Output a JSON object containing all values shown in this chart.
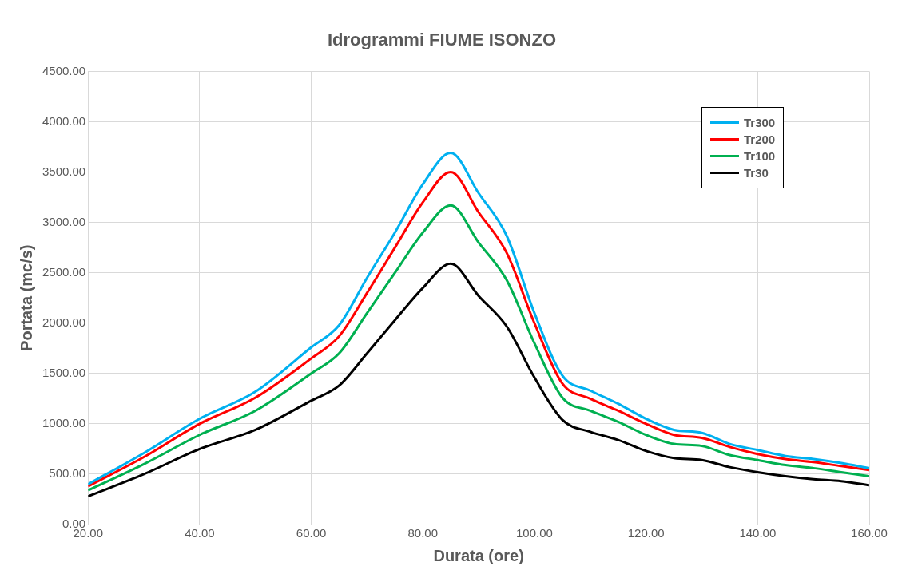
{
  "chart_data": {
    "type": "line",
    "title": "Idrogrammi FIUME ISONZO",
    "xlabel": "Durata (ore)",
    "ylabel": "Portata (mc/s)",
    "x": [
      20,
      30,
      40,
      50,
      60,
      65,
      70,
      75,
      80,
      85,
      90,
      95,
      100,
      105,
      110,
      115,
      120,
      125,
      130,
      135,
      140,
      145,
      150,
      155,
      160
    ],
    "series": [
      {
        "name": "Tr300",
        "color": "#00b0f0",
        "values": [
          400,
          710,
          1050,
          1320,
          1760,
          1980,
          2450,
          2900,
          3380,
          3690,
          3290,
          2870,
          2100,
          1480,
          1330,
          1200,
          1050,
          940,
          910,
          800,
          740,
          680,
          650,
          610,
          560
        ]
      },
      {
        "name": "Tr200",
        "color": "#ff0000",
        "values": [
          380,
          670,
          1000,
          1260,
          1650,
          1870,
          2300,
          2750,
          3200,
          3500,
          3100,
          2700,
          2000,
          1400,
          1250,
          1130,
          1000,
          890,
          860,
          770,
          700,
          650,
          620,
          580,
          540
        ]
      },
      {
        "name": "Tr100",
        "color": "#00b050",
        "values": [
          340,
          600,
          890,
          1130,
          1500,
          1700,
          2100,
          2500,
          2900,
          3170,
          2800,
          2430,
          1800,
          1260,
          1130,
          1020,
          890,
          800,
          780,
          690,
          640,
          590,
          560,
          520,
          480
        ]
      },
      {
        "name": "Tr30",
        "color": "#000000",
        "values": [
          280,
          500,
          750,
          940,
          1230,
          1380,
          1700,
          2030,
          2350,
          2590,
          2270,
          1970,
          1460,
          1040,
          920,
          840,
          730,
          660,
          640,
          570,
          520,
          480,
          450,
          430,
          390
        ]
      }
    ],
    "xlim": [
      20,
      160
    ],
    "xticks": [
      {
        "value": 20,
        "label": "20.00"
      },
      {
        "value": 40,
        "label": "40.00"
      },
      {
        "value": 60,
        "label": "60.00"
      },
      {
        "value": 80,
        "label": "80.00"
      },
      {
        "value": 100,
        "label": "100.00"
      },
      {
        "value": 120,
        "label": "120.00"
      },
      {
        "value": 140,
        "label": "140.00"
      },
      {
        "value": 160,
        "label": "160.00"
      }
    ],
    "ylim": [
      0,
      4500
    ],
    "yticks": [
      {
        "value": 0,
        "label": "0.00"
      },
      {
        "value": 500,
        "label": "500.00"
      },
      {
        "value": 1000,
        "label": "1000.00"
      },
      {
        "value": 1500,
        "label": "1500.00"
      },
      {
        "value": 2000,
        "label": "2000.00"
      },
      {
        "value": 2500,
        "label": "2500.00"
      },
      {
        "value": 3000,
        "label": "3000.00"
      },
      {
        "value": 3500,
        "label": "3500.00"
      },
      {
        "value": 4000,
        "label": "4000.00"
      },
      {
        "value": 4500,
        "label": "4500.00"
      }
    ],
    "grid": true,
    "legend": "top right",
    "marker": "none",
    "line_style": "solid"
  }
}
